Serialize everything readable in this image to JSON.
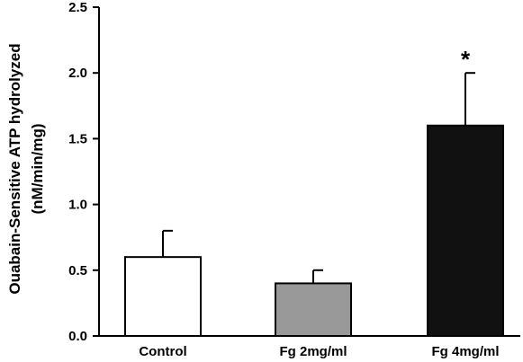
{
  "chart_data": {
    "type": "bar",
    "categories": [
      "Control",
      "Fg 2mg/ml",
      "Fg 4mg/ml"
    ],
    "values": [
      0.6,
      0.4,
      1.6
    ],
    "errors": [
      0.2,
      0.1,
      0.4
    ],
    "bar_colors": [
      "#ffffff",
      "#999999",
      "#111111"
    ],
    "annotations": [
      "",
      "",
      "*"
    ],
    "ylabel_line1": "Ouabain-Sensitive ATP hydrolyzed",
    "ylabel_line2": "(nM/min/mg)",
    "ylim": [
      0,
      2.5
    ],
    "yticks": [
      "0.0",
      "0.5",
      "1.0",
      "1.5",
      "2.0",
      "2.5"
    ],
    "grid": false
  }
}
